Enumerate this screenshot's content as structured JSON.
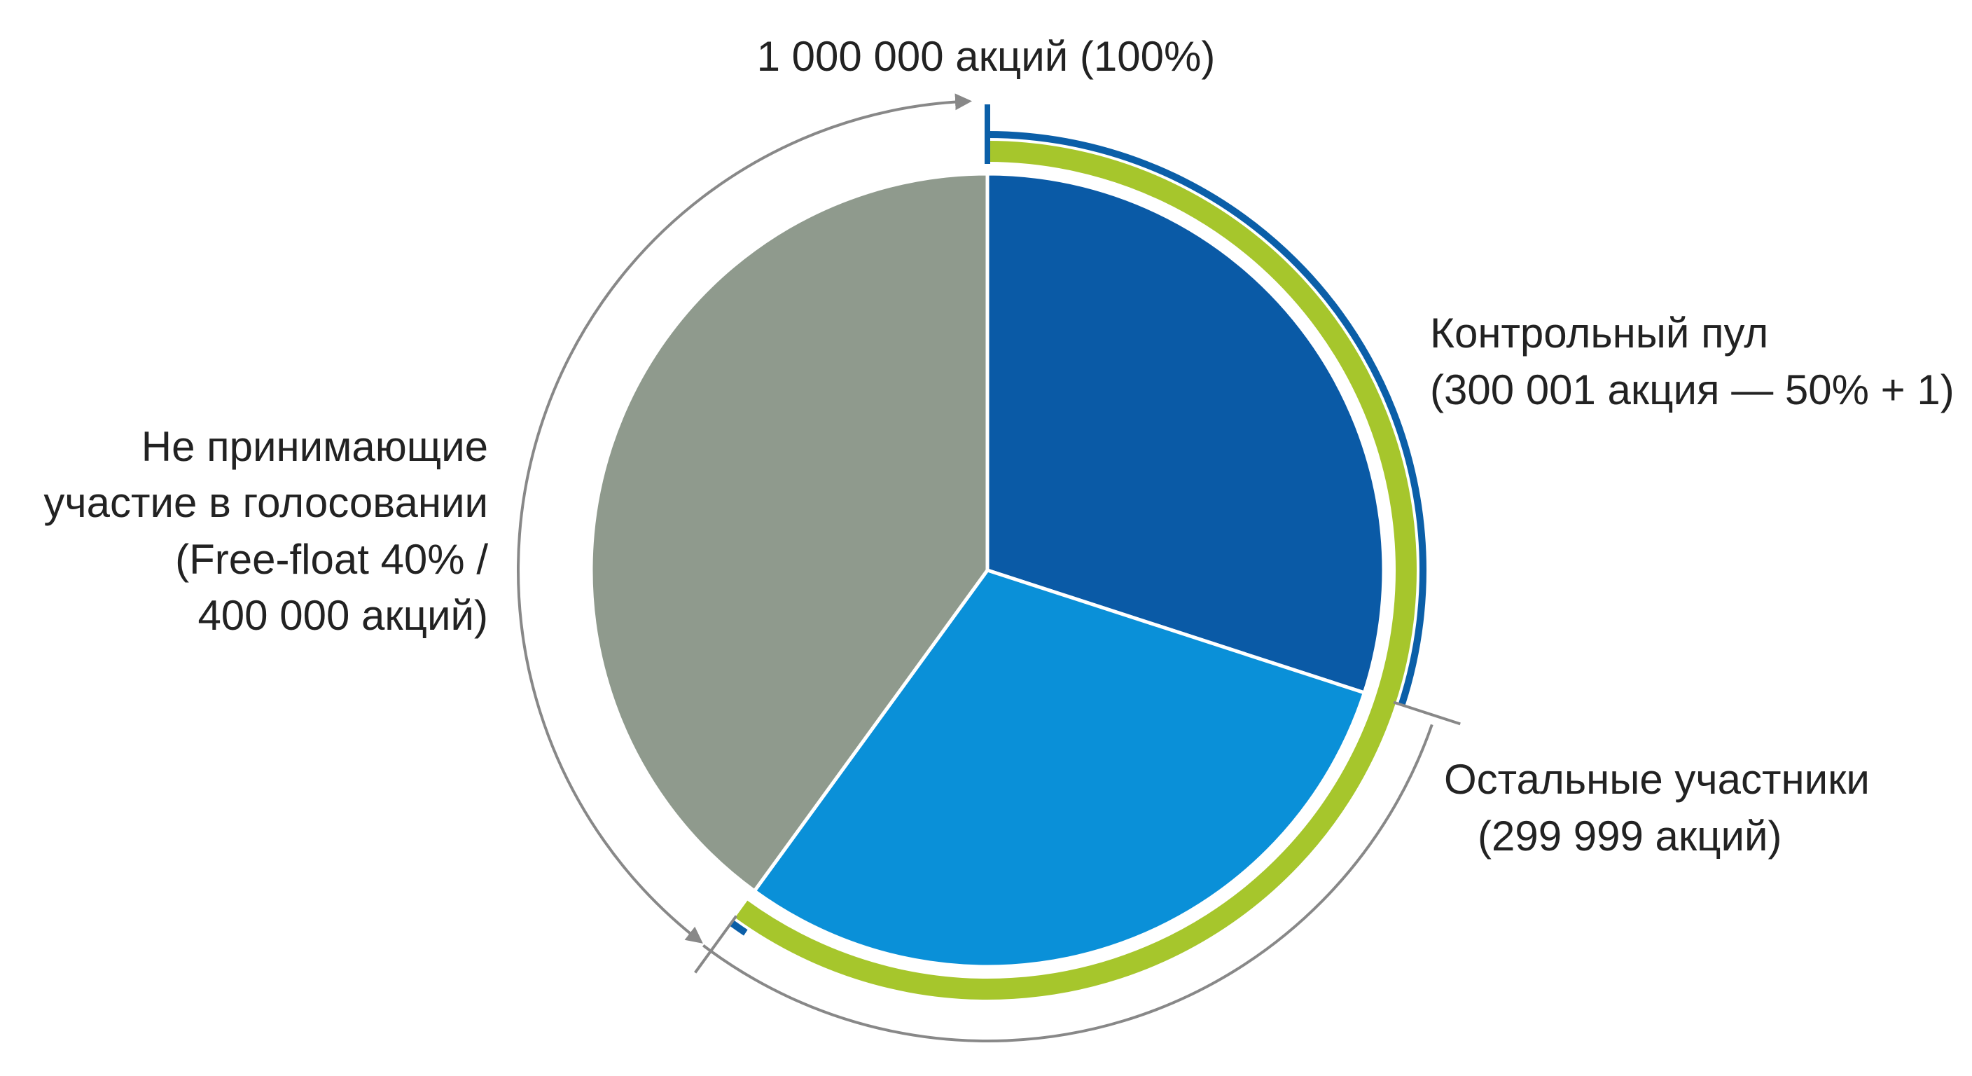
{
  "chart_data": {
    "type": "pie",
    "title": "1 000 000 акций (100%)",
    "categories": [
      "Контрольный пул",
      "Остальные участники",
      "Не принимающие\nучастие в голосовании"
    ],
    "values": [
      300001,
      299999,
      400000
    ],
    "value_labels": [
      "(300 001 акция — 50% + 1)",
      "(299 999 акций)",
      "(Free-float 40% /\n400 000 акций)"
    ],
    "colors": [
      "#0a5aa6",
      "#0a90d8",
      "#8f9a8d"
    ]
  }
}
